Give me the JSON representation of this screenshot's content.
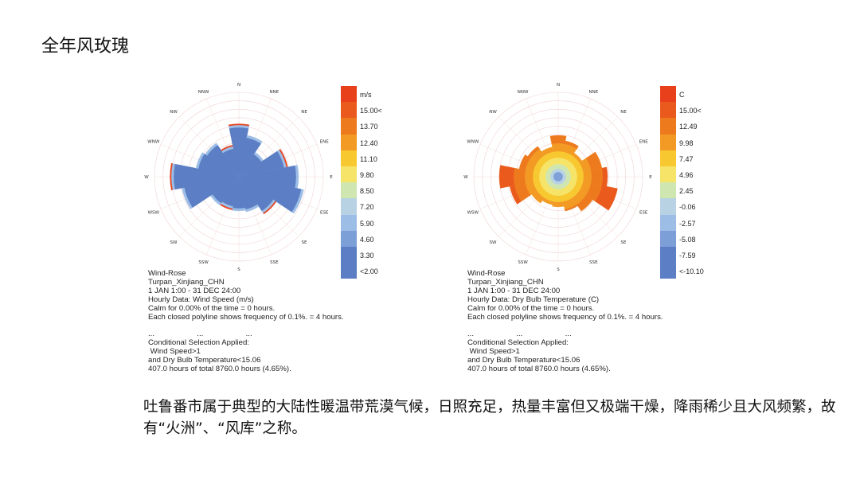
{
  "page_title": "全年风玫瑰",
  "chart_data": [
    {
      "type": "wind-rose",
      "directions": [
        "N",
        "NNE",
        "NE",
        "ENE",
        "E",
        "ESE",
        "SE",
        "SSE",
        "S",
        "SSW",
        "SW",
        "WSW",
        "W",
        "WNW",
        "NW",
        "NNW"
      ],
      "legend_title": "m/s",
      "legend_labels": [
        "15.00<",
        "13.70",
        "12.40",
        "11.10",
        "9.80",
        "8.50",
        "7.20",
        "5.90",
        "4.60",
        "3.30",
        "<2.00"
      ],
      "legend_colors": [
        "#e8401a",
        "#ea5a1c",
        "#ee7a1e",
        "#f29a24",
        "#f8c830",
        "#f6e468",
        "#cfe6b0",
        "#b8d2e4",
        "#9cbde6",
        "#7d9fd8",
        "#5b7ec4"
      ],
      "dominant_color": "#5b7ec4",
      "info_lines": [
        "Wind-Rose",
        "Turpan_Xinjiang_CHN",
        "1 JAN 1:00 - 31 DEC 24:00",
        "Hourly Data: Wind Speed (m/s)",
        "Calm for 0.00% of the time = 0 hours.",
        "Each closed polyline shows frequency of 0.1%. = 4 hours.",
        "",
        "...                    ...                    ...",
        "Conditional Selection Applied:",
        " Wind Speed>1",
        "and Dry Bulb Temperature<15.06",
        "407.0 hours of total 8760.0 hours (4.65%)."
      ]
    },
    {
      "type": "wind-rose",
      "directions": [
        "N",
        "NNE",
        "NE",
        "ENE",
        "E",
        "ESE",
        "SE",
        "SSE",
        "S",
        "SSW",
        "SW",
        "WSW",
        "W",
        "WNW",
        "NW",
        "NNW"
      ],
      "legend_title": "C",
      "legend_labels": [
        "15.00<",
        "12.49",
        "9.98",
        "7.47",
        "4.96",
        "2.45",
        "-0.06",
        "-2.57",
        "-5.08",
        "-7.59",
        "<-10.10"
      ],
      "legend_colors": [
        "#e8401a",
        "#ea5a1c",
        "#ee7a1e",
        "#f29a24",
        "#f8c830",
        "#f6e468",
        "#cfe6b0",
        "#b8d2e4",
        "#9cbde6",
        "#7d9fd8",
        "#5b7ec4"
      ],
      "info_lines": [
        "Wind-Rose",
        "Turpan_Xinjiang_CHN",
        "1 JAN 1:00 - 31 DEC 24:00",
        "Hourly Data: Dry Bulb Temperature (C)",
        "Calm for 0.00% of the time = 0 hours.",
        "Each closed polyline shows frequency of 0.1%. = 4 hours.",
        "",
        "...                    ...                    ...",
        "Conditional Selection Applied:",
        " Wind Speed>1",
        "and Dry Bulb Temperature<15.06",
        "407.0 hours of total 8760.0 hours (4.65%)."
      ]
    }
  ],
  "caption": "吐鲁番市属于典型的大陆性暖温带荒漠气候，日照充足，热量丰富但又极端干燥，降雨稀少且大风频繁，故有“火洲”、“风库”之称。"
}
